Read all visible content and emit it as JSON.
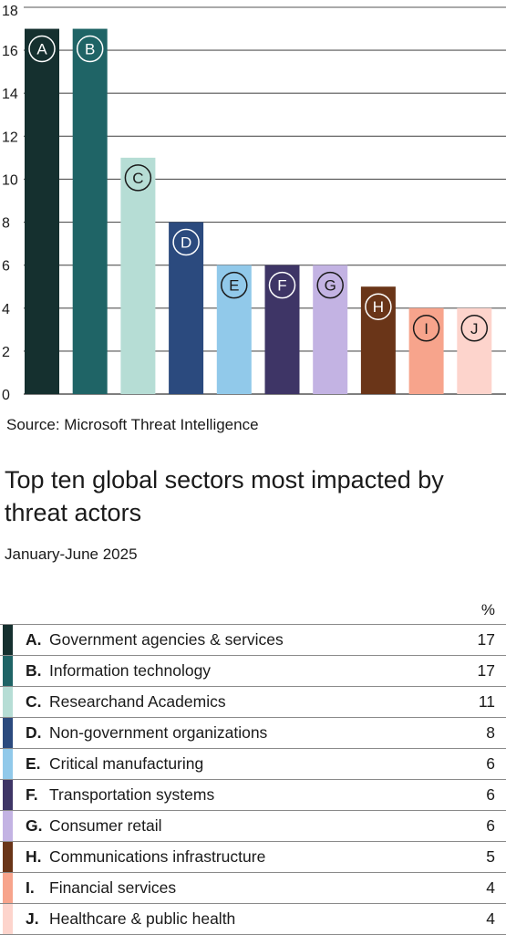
{
  "chart_data": {
    "type": "bar",
    "categories": [
      "A",
      "B",
      "C",
      "D",
      "E",
      "F",
      "G",
      "H",
      "I",
      "J"
    ],
    "values": [
      17,
      17,
      11,
      8,
      6,
      6,
      6,
      5,
      4,
      4
    ],
    "colors": [
      "#15302f",
      "#1f6466",
      "#b6ddd5",
      "#2b4a7e",
      "#91c9ea",
      "#3e3566",
      "#c3b3e3",
      "#6a3518",
      "#f7a48c",
      "#fdd4cc"
    ],
    "label_colors": [
      "#ffffff",
      "#ffffff",
      "#1a1a1a",
      "#ffffff",
      "#1a1a1a",
      "#ffffff",
      "#1a1a1a",
      "#ffffff",
      "#1a1a1a",
      "#1a1a1a"
    ],
    "yticks": [
      "0",
      "2",
      "4",
      "6",
      "8",
      "10",
      "12",
      "14",
      "16",
      "18"
    ],
    "ylim": [
      0,
      18
    ],
    "grid": true,
    "title": "",
    "xlabel": "",
    "ylabel": ""
  },
  "source": "Source: Microsoft Threat Intelligence",
  "title": "Top ten global sectors most impacted by threat actors",
  "subtitle": "January-June 2025",
  "legend": {
    "header": "%",
    "rows": [
      {
        "letter": "A.",
        "label": "Government agencies & services",
        "value": "17"
      },
      {
        "letter": "B.",
        "label": "Information technology",
        "value": "17"
      },
      {
        "letter": "C.",
        "label": "Researchand Academics",
        "value": "11"
      },
      {
        "letter": "D.",
        "label": "Non-government organizations",
        "value": "8"
      },
      {
        "letter": "E.",
        "label": "Critical manufacturing",
        "value": "6"
      },
      {
        "letter": "F.",
        "label": "Transportation systems",
        "value": "6"
      },
      {
        "letter": "G.",
        "label": "Consumer retail",
        "value": "6"
      },
      {
        "letter": "H.",
        "label": "Communications infrastructure",
        "value": "5"
      },
      {
        "letter": "I.",
        "label": "Financial services",
        "value": "4"
      },
      {
        "letter": "J.",
        "label": "Healthcare & public health",
        "value": "4"
      }
    ]
  }
}
